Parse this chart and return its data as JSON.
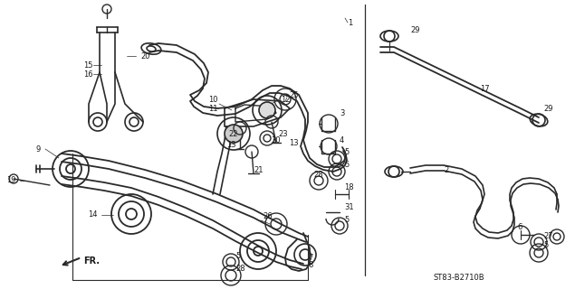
{
  "bg_color": "#ffffff",
  "line_color": "#2a2a2a",
  "text_color": "#1a1a1a",
  "diagram_code": "ST83-B2710B",
  "fig_width": 6.35,
  "fig_height": 3.2,
  "dpi": 100
}
